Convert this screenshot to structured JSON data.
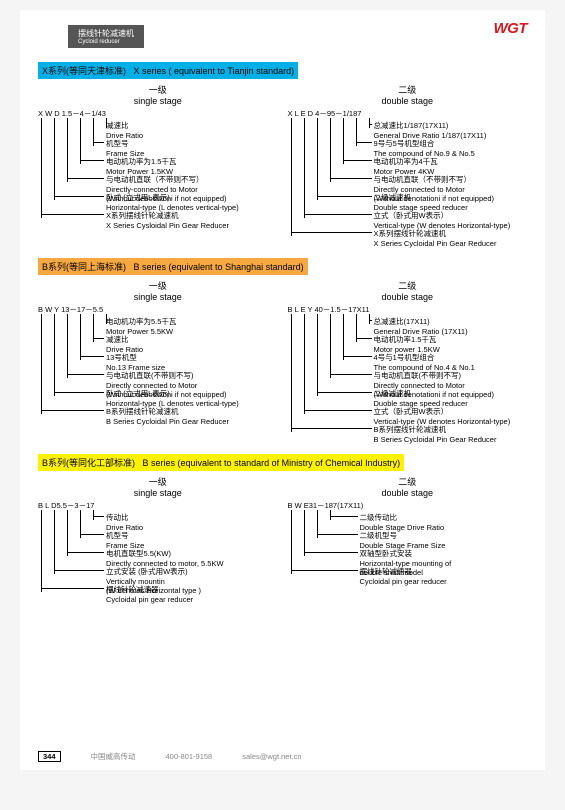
{
  "logo": "WGT",
  "header": {
    "line1": "摆线针轮减速机",
    "line2": "Cycloid reducer"
  },
  "sections": [
    {
      "title_cn": "X系列(等同天津标准)",
      "title_en": "X series ( equivalent to Tianjin standard)",
      "hl": "blue-hl",
      "single": {
        "stage_cn": "一级",
        "stage_en": "single stage",
        "code": "X  W  D  1.5－4－1/43",
        "items": [
          {
            "cn": "减速比",
            "en": "Drive Ratio"
          },
          {
            "cn": "机型号",
            "en": "Frame Size"
          },
          {
            "cn": "电动机功率为1.5千瓦",
            "en": "Motor Power 1.5KW"
          },
          {
            "cn": "与电动机直联（不带则不写）",
            "en": "Directly-connected to Motor\n(Without denotationi if not equipped)"
          },
          {
            "cn": "卧式 (立式用L表示)",
            "en": "Horizontal-type (L denotes vertical-type)"
          },
          {
            "cn": "X系列摆线针轮减速机",
            "en": "X Series Cysloidal Pin Gear Reducer"
          }
        ]
      },
      "double": {
        "stage_cn": "二级",
        "stage_en": "double stage",
        "code": "X  L  E  D  4－95－1/187",
        "items": [
          {
            "cn": "总减速比1/187(17X11)",
            "en": "General Drive Ratio 1/187(17X11)"
          },
          {
            "cn": "9号与5号机型组合",
            "en": "The compound of No.9 & No.5"
          },
          {
            "cn": "电动机功率为4千瓦",
            "en": "Motor Power 4KW"
          },
          {
            "cn": "与电动机直联（不带则不写）",
            "en": "Directly connected to Motor\n(Without denotationi if not equipped)"
          },
          {
            "cn": "二级减速机",
            "en": "Double stage speed reducer"
          },
          {
            "cn": "立式（卧式用W表示）",
            "en": "Vertical-type (W denotes Horizontal-type)"
          },
          {
            "cn": "X系列摆线针轮减速机",
            "en": "X Series Cycloidal Pin Gear Reducer"
          }
        ]
      }
    },
    {
      "title_cn": "B系列(等同上海标准)",
      "title_en": "B series (equivalent to Shanghai standard)",
      "hl": "orange-hl",
      "single": {
        "stage_cn": "一级",
        "stage_en": "single stage",
        "code": "B  W  Y  13－17－5.5",
        "items": [
          {
            "cn": "电动机功率为5.5千瓦",
            "en": "Motor Power 5.5KW"
          },
          {
            "cn": "减速比",
            "en": "Drive Ratio"
          },
          {
            "cn": "13号机型",
            "en": "No.13 Frame size"
          },
          {
            "cn": "与电动机直联(不带则不写)",
            "en": "Directly connected to Motor\n(Without denotationi if not equipped)"
          },
          {
            "cn": "卧式 (立式用L表示)",
            "en": "Horizontal-type (L denotes vertical-type)"
          },
          {
            "cn": "B系列摆线针轮减速机",
            "en": "B Series Cycloidal Pin Gear Reducer"
          }
        ]
      },
      "double": {
        "stage_cn": "二级",
        "stage_en": "double stage",
        "code": "B  L  E  Y  40－1.5－17X11",
        "items": [
          {
            "cn": "总减速比(17X11)",
            "en": "General Drive Ratio (17X11)"
          },
          {
            "cn": "电动机功率1.5千瓦",
            "en": "Motor power 1.5KW"
          },
          {
            "cn": "4号与1号机型组合",
            "en": "The compound of No.4 & No.1"
          },
          {
            "cn": "与电动机直联(不带则不写)",
            "en": "Directly connected to Motor\n(Without denotationi if not equipped)"
          },
          {
            "cn": "二级减速机",
            "en": "Duoble stage speed reducer"
          },
          {
            "cn": "立式（卧式用W表示）",
            "en": "Vertical-type (W denotes Horizontal-type)"
          },
          {
            "cn": "B系列摆线针轮减速机",
            "en": "B Series Cycloidal Pin Gear Reducer"
          }
        ]
      }
    },
    {
      "title_cn": "B系列(等同化工部标准)",
      "title_en": "B series (equivalent to standard of Ministry of Chemical Industry)",
      "hl": "yellow-hl",
      "single": {
        "stage_cn": "一级",
        "stage_en": "single stage",
        "code": "B  L  D5.5－3－17",
        "items": [
          {
            "cn": "传动比",
            "en": "Drive Ratio"
          },
          {
            "cn": "机型号",
            "en": "Frame Size"
          },
          {
            "cn": "电机直联型5.5(KW)",
            "en": "Directly connected to motor, 5.5KW"
          },
          {
            "cn": "立式安装 (卧式用W表示)",
            "en": "Vertically mountin\n(W denotes Horizontal type )"
          },
          {
            "cn": "摆线针轮减速器",
            "en": "Cycloidal pin gear reducer"
          }
        ]
      },
      "double": {
        "stage_cn": "二级",
        "stage_en": "double stage",
        "code": "B  W  E31－187(17X11)",
        "items": [
          {
            "cn": "二级传动比",
            "en": "Double Stage Drive Ratio"
          },
          {
            "cn": "二级机型号",
            "en": "Double Stage Frame Size"
          },
          {
            "cn": "双轴型卧式安装",
            "en": "Horizontal-type mounting of\ndouble shaft model"
          },
          {
            "cn": "摆线针轮减速器",
            "en": "Cycloidal pin gear reducer"
          }
        ]
      }
    }
  ],
  "footer": {
    "page": "344",
    "company": "中国威高传动",
    "phone": "400-801-9158",
    "email": "sales@wgt.net.cn"
  },
  "colors": {
    "logo": "#d8181f",
    "blue": "#00b0e6",
    "orange": "#f7a840",
    "yellow": "#fff200",
    "header_bg": "#555555"
  }
}
